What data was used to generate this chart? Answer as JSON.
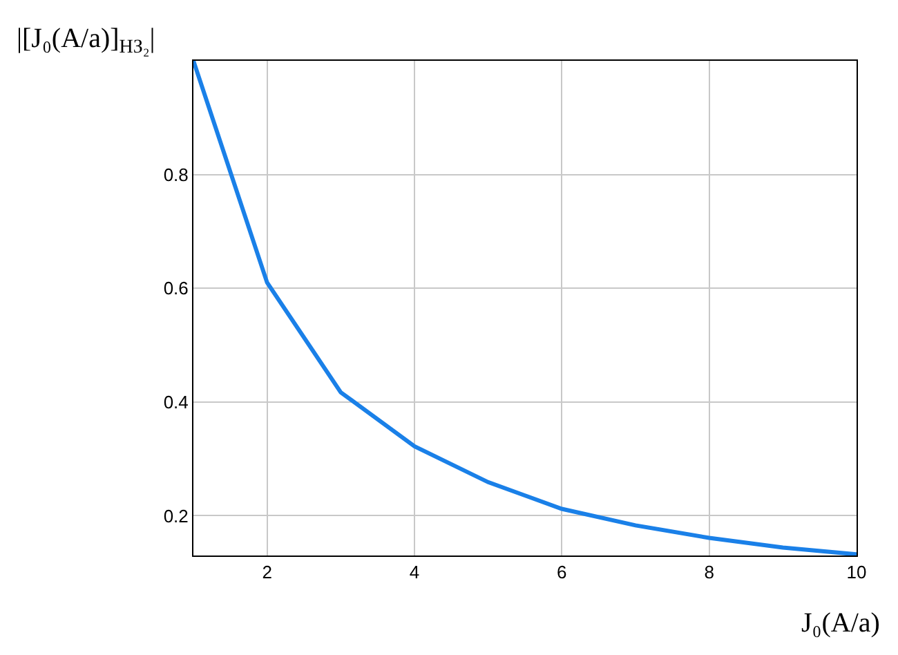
{
  "chart_data": {
    "type": "line",
    "xlabel": "J₀(A/a)",
    "ylabel": "|[J₀(A/a)]$_{НЗ₂}$|",
    "x": [
      1,
      2,
      3,
      4,
      5,
      6,
      7,
      8,
      9,
      10
    ],
    "series": [
      {
        "color": "#1a80e8",
        "values": [
          1.0,
          0.61,
          0.417,
          0.322,
          0.259,
          0.212,
          0.183,
          0.161,
          0.144,
          0.132
        ]
      }
    ],
    "xlim": [
      1,
      10
    ],
    "xticks": [
      2,
      4,
      6,
      8,
      10
    ],
    "ylim": [
      0.13,
      1.0
    ],
    "yticks": [
      0.2,
      0.4,
      0.6,
      0.8
    ],
    "grid": true,
    "marker": "none",
    "line_style": "solid"
  }
}
